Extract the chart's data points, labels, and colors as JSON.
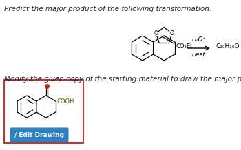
{
  "title_text": "Predict the major product of the following transformation:",
  "title_fontsize": 7.5,
  "title_color": "#2c2c2c",
  "subtitle_text": "Modify the given copy of the starting material to draw the major product.",
  "subtitle_fontsize": 7.5,
  "bg_color": "#ffffff",
  "arrow_above_text": "H₂O⁺",
  "arrow_below_text": "Heat",
  "product_formula": "C₁₀H₁₀O",
  "box_edge_color": "#d44",
  "button_color": "#2e7ec2",
  "button_text": "∕ Edit Drawing",
  "button_text_color": "#ffffff"
}
